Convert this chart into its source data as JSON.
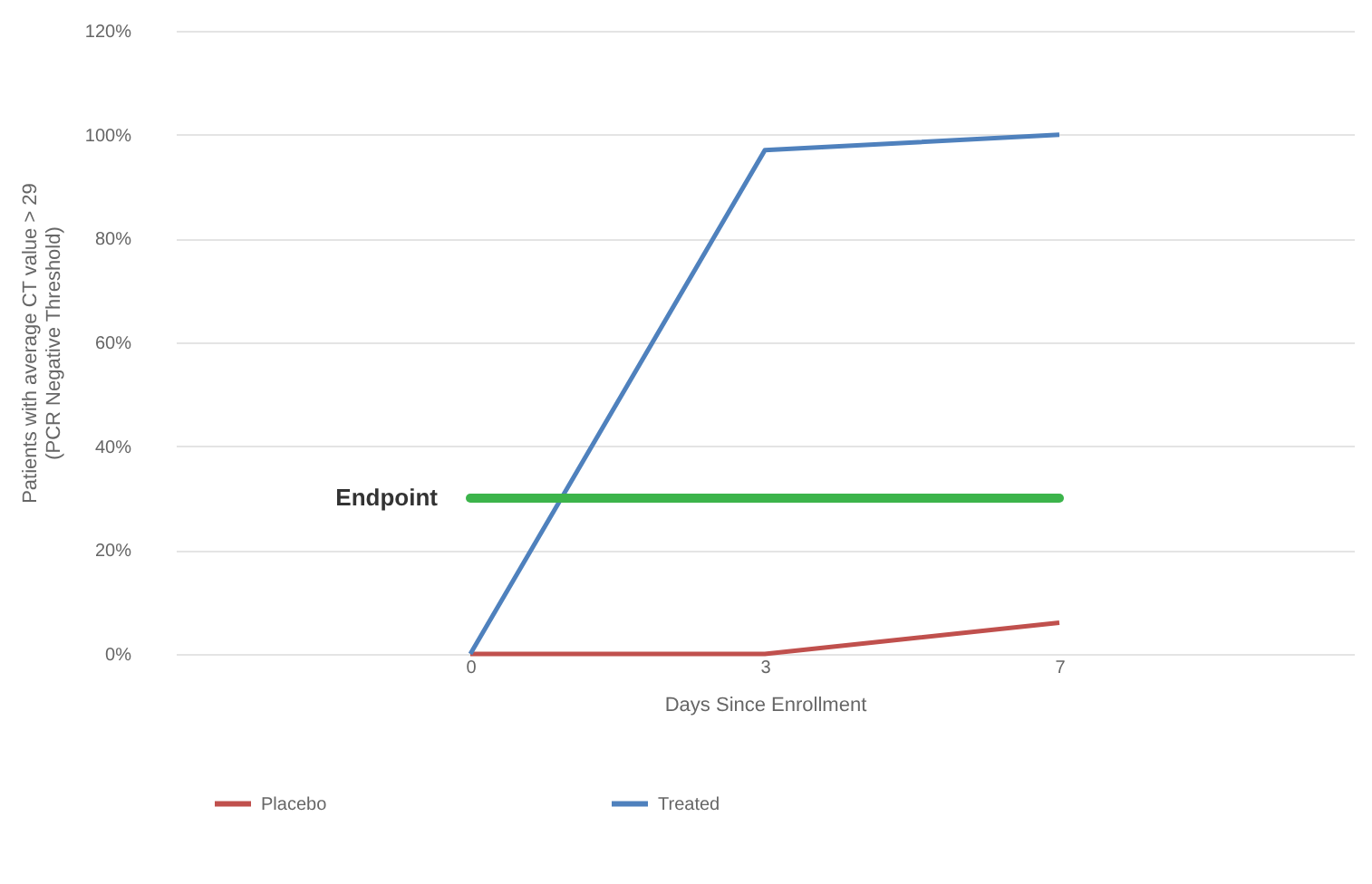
{
  "chart_data": {
    "type": "line",
    "xlabel": "Days Since Enrollment",
    "ylabel": "Patients with average CT value > 29\n(PCR Negative Threshold)",
    "categories": [
      "0",
      "3",
      "7"
    ],
    "series": [
      {
        "name": "Placebo",
        "color": "#c0504d",
        "values": [
          0,
          0,
          6
        ]
      },
      {
        "name": "Treated",
        "color": "#4f81bd",
        "values": [
          0,
          97,
          100
        ]
      }
    ],
    "ylim": [
      0,
      120
    ],
    "yticks": [
      {
        "value": 0,
        "label": "0%"
      },
      {
        "value": 20,
        "label": "20%"
      },
      {
        "value": 40,
        "label": "40%"
      },
      {
        "value": 60,
        "label": "60%"
      },
      {
        "value": 80,
        "label": "80%"
      },
      {
        "value": 100,
        "label": "100%"
      },
      {
        "value": 120,
        "label": "120%"
      }
    ],
    "ref_lines": [
      {
        "axis": "y",
        "value": 30,
        "label": "Endpoint",
        "color": "#3cb44b"
      }
    ],
    "grid": "y",
    "legend": "bottom",
    "marker": "none",
    "line_style": "solid"
  }
}
